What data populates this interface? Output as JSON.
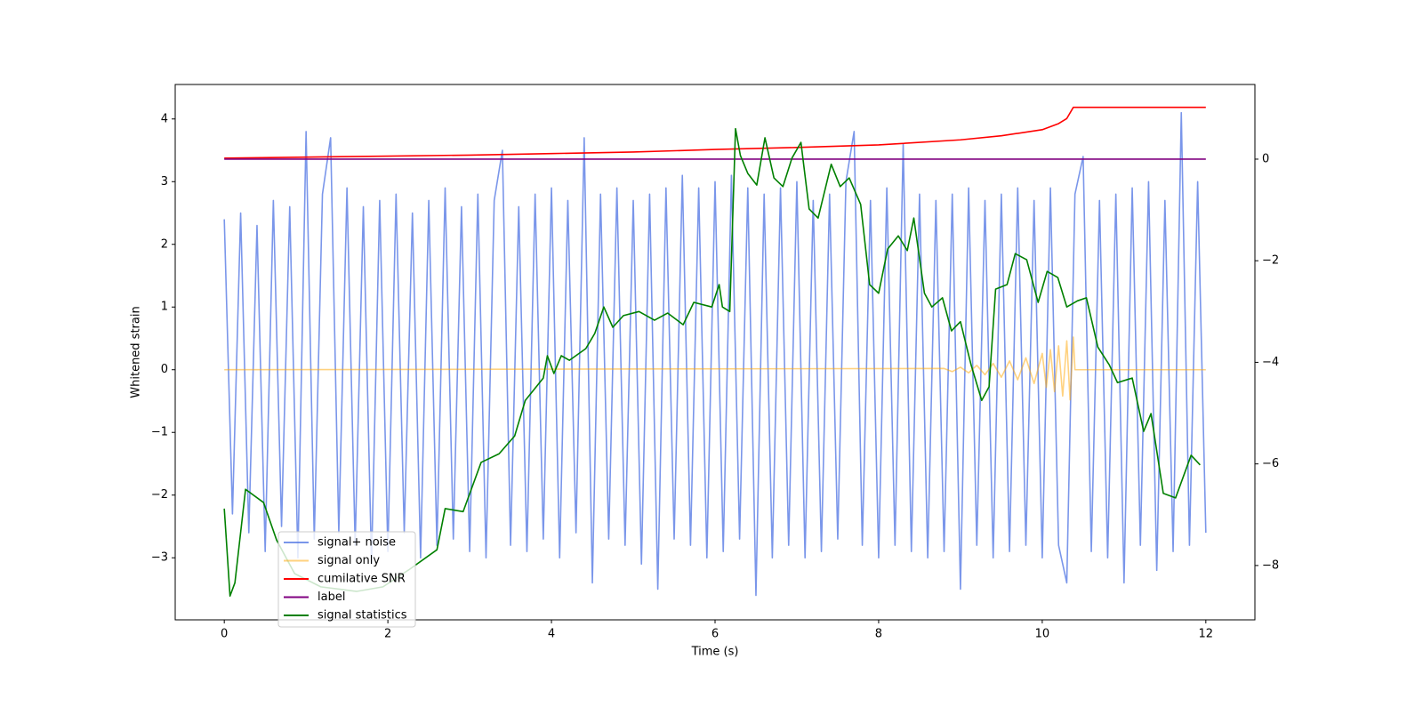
{
  "chart_data": {
    "type": "line",
    "xlabel": "Time (s)",
    "ylabel": "Whitened strain",
    "xlim": [
      -0.6,
      12.6
    ],
    "ylim": [
      -3.99,
      4.55
    ],
    "y2lim": [
      -9.07,
      1.47
    ],
    "xticks": [
      0,
      2,
      4,
      6,
      8,
      10,
      12
    ],
    "yticks": [
      {
        "value": -3,
        "label": "−3"
      },
      {
        "value": -2,
        "label": "−2"
      },
      {
        "value": -1,
        "label": "−1"
      },
      0,
      1,
      2,
      3,
      4
    ],
    "y2ticks": [
      {
        "value": -8,
        "label": "−8"
      },
      {
        "value": -6,
        "label": "−6"
      },
      {
        "value": -4,
        "label": "−4"
      },
      {
        "value": -2,
        "label": "−2"
      },
      0
    ],
    "series": [
      {
        "name": "signal+ noise",
        "color": "#4169e1",
        "opacity": 0.7,
        "x": [
          0,
          0.1,
          0.2,
          0.3,
          0.4,
          0.5,
          0.6,
          0.7,
          0.8,
          0.9,
          1,
          1.1,
          1.2,
          1.3,
          1.4,
          1.5,
          1.6,
          1.7,
          1.8,
          1.9,
          2,
          2.1,
          2.2,
          2.3,
          2.4,
          2.5,
          2.6,
          2.7,
          2.8,
          2.9,
          3,
          3.1,
          3.2,
          3.3,
          3.4,
          3.5,
          3.6,
          3.7,
          3.8,
          3.9,
          4,
          4.1,
          4.2,
          4.3,
          4.4,
          4.5,
          4.6,
          4.7,
          4.8,
          4.9,
          5,
          5.1,
          5.2,
          5.3,
          5.4,
          5.5,
          5.6,
          5.7,
          5.8,
          5.9,
          6,
          6.1,
          6.2,
          6.3,
          6.4,
          6.5,
          6.6,
          6.7,
          6.8,
          6.9,
          7,
          7.1,
          7.2,
          7.3,
          7.4,
          7.5,
          7.6,
          7.7,
          7.8,
          7.9,
          8,
          8.1,
          8.2,
          8.3,
          8.4,
          8.5,
          8.6,
          8.7,
          8.8,
          8.9,
          9,
          9.1,
          9.2,
          9.3,
          9.4,
          9.5,
          9.6,
          9.7,
          9.8,
          9.9,
          10,
          10.1,
          10.2,
          10.3,
          10.4,
          10.5,
          10.6,
          10.7,
          10.8,
          10.9,
          11,
          11.1,
          11.2,
          11.3,
          11.4,
          11.5,
          11.6,
          11.7,
          11.8,
          11.9,
          12
        ],
        "values": [
          2.4,
          -2.3,
          2.5,
          -2.6,
          2.3,
          -2.9,
          2.7,
          -2.5,
          2.6,
          -3.0,
          3.8,
          -2.7,
          2.8,
          3.7,
          -2.6,
          2.9,
          -2.8,
          2.6,
          -3.1,
          2.7,
          -2.9,
          2.8,
          -2.6,
          2.5,
          -3.0,
          2.7,
          -2.8,
          2.9,
          -2.7,
          2.6,
          -2.9,
          2.8,
          -3.0,
          2.7,
          3.5,
          -2.8,
          2.6,
          -2.9,
          2.8,
          -2.7,
          2.9,
          -3.0,
          2.7,
          -2.6,
          3.7,
          -3.4,
          2.8,
          -2.7,
          2.9,
          -2.8,
          2.7,
          -3.1,
          2.8,
          -3.5,
          2.9,
          -2.7,
          3.1,
          -2.8,
          2.9,
          -3.0,
          3.0,
          -2.9,
          3.1,
          -2.7,
          2.9,
          -3.6,
          2.8,
          -3.0,
          2.9,
          -2.8,
          3.0,
          -3.0,
          2.7,
          -2.9,
          2.8,
          -2.7,
          3.0,
          3.8,
          -2.8,
          2.7,
          -3.0,
          2.9,
          -2.8,
          3.6,
          -2.9,
          2.8,
          -3.0,
          2.7,
          -2.9,
          2.8,
          -3.5,
          2.9,
          -2.8,
          2.7,
          -3.0,
          2.8,
          -2.9,
          2.9,
          -2.8,
          2.7,
          -3.0,
          2.9,
          -2.8,
          -3.4,
          2.8,
          3.4,
          -2.9,
          2.7,
          -3.0,
          2.8,
          -3.4,
          2.9,
          -2.8,
          3.0,
          -3.2,
          2.7,
          -2.9,
          4.1,
          -2.8,
          3.0,
          -2.6
        ]
      },
      {
        "name": "signal only",
        "color": "#ffa500",
        "opacity": 0.5,
        "x": [
          0,
          8.8,
          8.9,
          9.0,
          9.1,
          9.2,
          9.3,
          9.4,
          9.5,
          9.6,
          9.7,
          9.8,
          9.9,
          10.0,
          10.05,
          10.1,
          10.15,
          10.2,
          10.25,
          10.3,
          10.34,
          10.38,
          10.4,
          12
        ],
        "values": [
          0,
          0.02,
          -0.03,
          0.04,
          -0.05,
          0.07,
          -0.08,
          0.1,
          -0.12,
          0.14,
          -0.16,
          0.19,
          -0.22,
          0.26,
          -0.28,
          0.32,
          -0.35,
          0.38,
          -0.42,
          0.46,
          -0.48,
          0.52,
          0,
          0
        ]
      },
      {
        "name": "cumilative SNR",
        "color": "#ff0000",
        "opacity": 1,
        "axis": "y2",
        "x": [
          0,
          1,
          2,
          3,
          4,
          5,
          6,
          7,
          8,
          9,
          9.5,
          10,
          10.2,
          10.3,
          10.38,
          12
        ],
        "values": [
          0.02,
          0.04,
          0.06,
          0.08,
          0.11,
          0.14,
          0.19,
          0.23,
          0.28,
          0.38,
          0.46,
          0.58,
          0.7,
          0.8,
          1.02,
          1.02
        ]
      },
      {
        "name": "label",
        "color": "#800080",
        "opacity": 1,
        "axis": "y2",
        "x": [
          0,
          12
        ],
        "values": [
          0,
          0
        ]
      },
      {
        "name": "signal statistics",
        "color": "#008000",
        "opacity": 1,
        "axis": "y2",
        "x": [
          0,
          0.07,
          0.13,
          0.26,
          0.48,
          0.64,
          0.86,
          1.18,
          1.62,
          1.94,
          2.27,
          2.6,
          2.7,
          2.92,
          3.14,
          3.36,
          3.55,
          3.68,
          3.9,
          3.95,
          4.03,
          4.12,
          4.22,
          4.42,
          4.53,
          4.64,
          4.75,
          4.88,
          5.07,
          5.26,
          5.42,
          5.61,
          5.74,
          5.96,
          6.05,
          6.09,
          6.18,
          6.25,
          6.31,
          6.4,
          6.51,
          6.61,
          6.72,
          6.83,
          6.94,
          7.05,
          7.15,
          7.26,
          7.42,
          7.53,
          7.64,
          7.78,
          7.89,
          8.0,
          8.11,
          8.24,
          8.35,
          8.43,
          8.56,
          8.65,
          8.78,
          8.89,
          9.0,
          9.13,
          9.26,
          9.35,
          9.43,
          9.57,
          9.67,
          9.81,
          9.95,
          10.06,
          10.19,
          10.3,
          10.43,
          10.54,
          10.68,
          10.82,
          10.92,
          11.1,
          11.24,
          11.33,
          11.48,
          11.63,
          11.82,
          11.93
        ],
        "values": [
          -6.88,
          -8.6,
          -8.34,
          -6.5,
          -6.76,
          -7.5,
          -8.16,
          -8.42,
          -8.51,
          -8.42,
          -8.07,
          -7.69,
          -6.88,
          -6.94,
          -5.97,
          -5.8,
          -5.45,
          -4.75,
          -4.31,
          -3.87,
          -4.22,
          -3.87,
          -3.96,
          -3.73,
          -3.43,
          -2.91,
          -3.31,
          -3.08,
          -3.0,
          -3.17,
          -3.03,
          -3.26,
          -2.82,
          -2.91,
          -2.47,
          -2.91,
          -3.0,
          0.6,
          0.07,
          -0.28,
          -0.51,
          0.42,
          -0.37,
          -0.54,
          0.02,
          0.33,
          -0.98,
          -1.16,
          -0.1,
          -0.54,
          -0.37,
          -0.89,
          -2.47,
          -2.64,
          -1.77,
          -1.51,
          -1.8,
          -1.16,
          -2.64,
          -2.91,
          -2.73,
          -3.38,
          -3.2,
          -4.05,
          -4.75,
          -4.48,
          -2.56,
          -2.47,
          -1.86,
          -1.98,
          -2.82,
          -2.21,
          -2.33,
          -2.91,
          -2.79,
          -2.73,
          -3.7,
          -4.05,
          -4.4,
          -4.31,
          -5.36,
          -5.01,
          -6.58,
          -6.67,
          -5.83,
          -6.02
        ]
      }
    ]
  }
}
